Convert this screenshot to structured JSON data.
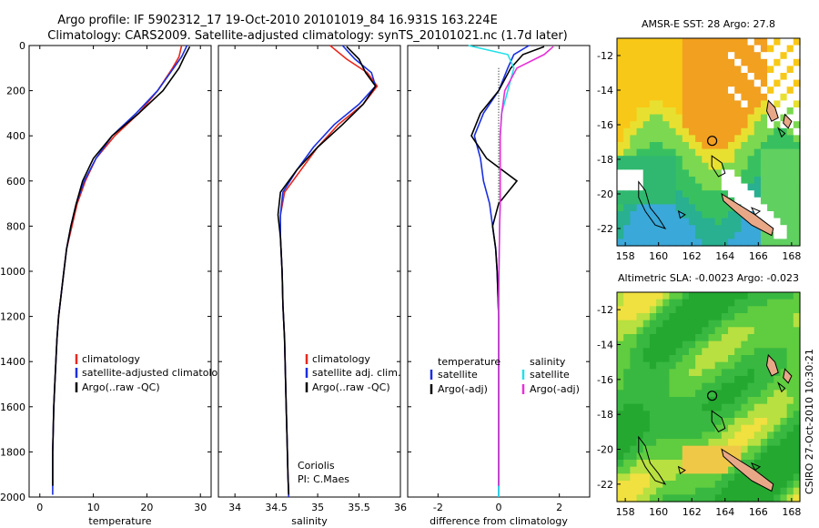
{
  "header": {
    "line1": "Argo profile: IF 5902312_17 19-Oct-2010 20101019_84 16.931S 163.224E",
    "line2": "Climatology: CARS2009. Satellite-adjusted climatology: synTS_20101021.nc (1.7d later)"
  },
  "side_label": "CSIRO 27-Oct-2010 10:30:21",
  "colors": {
    "climatology": "#e8281e",
    "satellite": "#1a2fe0",
    "argo": "#000000",
    "satellite_diff": "#22e0e8",
    "argo_diff": "#e830d8"
  },
  "chart_data": [
    {
      "type": "line",
      "id": "temperature",
      "xlabel": "temperature",
      "ylabel": "",
      "xlim": [
        -2,
        32
      ],
      "ylim": [
        2000,
        0
      ],
      "xticks": [
        "0",
        "10",
        "20",
        "30"
      ],
      "xtick_values": [
        0,
        10,
        20,
        30
      ],
      "yticks": [
        "0",
        "200",
        "400",
        "600",
        "800",
        "1000",
        "1200",
        "1400",
        "1600",
        "1800",
        "2000"
      ],
      "ytick_values": [
        0,
        200,
        400,
        600,
        800,
        1000,
        1200,
        1400,
        1600,
        1800,
        2000
      ],
      "series": [
        {
          "name": "climatology",
          "color": "#e8281e",
          "x": [
            26.5,
            26,
            24.8,
            22,
            18.5,
            14,
            10.5,
            8.5,
            7,
            6,
            5,
            4.5,
            4,
            3.5,
            3.2,
            3,
            2.8,
            2.6,
            2.5,
            2.4,
            2.4
          ],
          "y": [
            0,
            50,
            100,
            200,
            300,
            400,
            500,
            600,
            700,
            800,
            900,
            1000,
            1100,
            1200,
            1300,
            1400,
            1500,
            1600,
            1700,
            1800,
            1950
          ]
        },
        {
          "name": "satellite-adjusted climatology",
          "color": "#1a2fe0",
          "x": [
            27.5,
            26.5,
            25,
            22,
            18,
            13.5,
            10.5,
            8.3,
            6.8,
            5.8,
            5,
            4.5,
            4,
            3.5,
            3.2,
            3,
            2.8,
            2.6,
            2.5,
            2.4,
            2.4
          ],
          "y": [
            0,
            50,
            100,
            200,
            300,
            400,
            500,
            600,
            700,
            800,
            900,
            1000,
            1100,
            1200,
            1300,
            1400,
            1500,
            1600,
            1700,
            1800,
            1990
          ]
        },
        {
          "name": "Argo(..raw -QC)",
          "color": "#000000",
          "x": [
            28,
            27,
            26,
            23,
            18.5,
            13.5,
            10,
            8,
            6.8,
            5.8,
            5,
            4.5,
            4,
            3.5,
            3.2,
            3,
            2.8,
            2.6,
            2.5,
            2.4,
            2.4
          ],
          "y": [
            5,
            50,
            100,
            200,
            300,
            400,
            500,
            600,
            700,
            800,
            900,
            1000,
            1100,
            1200,
            1300,
            1400,
            1500,
            1600,
            1700,
            1800,
            1950
          ]
        }
      ],
      "legend": [
        "climatology",
        "satellite-adjusted climatology",
        "Argo(..raw -QC)"
      ]
    },
    {
      "type": "line",
      "id": "salinity",
      "xlabel": "salinity",
      "xlim": [
        33.8,
        36.0
      ],
      "ylim": [
        2000,
        0
      ],
      "xticks": [
        "34",
        "34.5",
        "35",
        "35.5",
        "36"
      ],
      "xtick_values": [
        34,
        34.5,
        35,
        35.5,
        36
      ],
      "series": [
        {
          "name": "climatology",
          "color": "#e8281e",
          "x": [
            35.15,
            35.35,
            35.6,
            35.72,
            35.55,
            35.25,
            35,
            34.8,
            34.6,
            34.55,
            34.55,
            34.57,
            34.58,
            34.6,
            34.61,
            34.62,
            34.63,
            34.64,
            34.65
          ],
          "y": [
            0,
            60,
            120,
            180,
            260,
            350,
            450,
            550,
            650,
            750,
            850,
            1000,
            1150,
            1300,
            1450,
            1600,
            1750,
            1900,
            2000
          ]
        },
        {
          "name": "satellite adj. clim.",
          "color": "#1a2fe0",
          "x": [
            35.3,
            35.45,
            35.65,
            35.7,
            35.5,
            35.2,
            34.95,
            34.75,
            34.58,
            34.55,
            34.55,
            34.57,
            34.58,
            34.6,
            34.61,
            34.62,
            34.63,
            34.64,
            34.65
          ],
          "y": [
            0,
            60,
            120,
            180,
            260,
            350,
            450,
            550,
            650,
            750,
            850,
            1000,
            1150,
            1300,
            1450,
            1600,
            1750,
            1900,
            2000
          ]
        },
        {
          "name": "Argo(..raw -QC)",
          "color": "#000000",
          "x": [
            35.35,
            35.5,
            35.58,
            35.7,
            35.55,
            35.3,
            35,
            34.75,
            34.55,
            34.52,
            34.55,
            34.57,
            34.58,
            34.6,
            34.61,
            34.62,
            34.63,
            34.64,
            34.65
          ],
          "y": [
            5,
            60,
            120,
            180,
            260,
            350,
            450,
            550,
            650,
            750,
            850,
            1000,
            1150,
            1300,
            1450,
            1600,
            1750,
            1900,
            1990
          ]
        }
      ],
      "legend": [
        "climatology",
        "satellite adj. clim.",
        "Argo(..raw -QC)"
      ],
      "annotation": [
        "Coriolis",
        "PI: C.Maes"
      ]
    },
    {
      "type": "line",
      "id": "difference",
      "xlabel": "difference from climatology",
      "xlim": [
        -3,
        3
      ],
      "ylim": [
        2000,
        0
      ],
      "xticks": [
        "-2",
        "0",
        "2"
      ],
      "xtick_values": [
        -2,
        0,
        2
      ],
      "series": [
        {
          "name": "temperature satellite",
          "color": "#1a2fe0",
          "x": [
            1,
            0.5,
            0.3,
            0,
            -0.5,
            -0.8,
            -0.6,
            -0.5,
            -0.3,
            -0.2,
            -0.1,
            -0.05,
            0,
            0,
            0,
            0,
            0
          ],
          "y": [
            0,
            40,
            100,
            200,
            300,
            400,
            500,
            600,
            700,
            800,
            900,
            1000,
            1200,
            1400,
            1600,
            1800,
            2000
          ]
        },
        {
          "name": "temperature Argo(-adj)",
          "color": "#000000",
          "x": [
            1.5,
            0.8,
            0.4,
            0,
            -0.6,
            -0.9,
            -0.4,
            0.6,
            0,
            -0.2,
            -0.1,
            -0.05,
            0,
            0,
            0,
            0,
            0
          ],
          "y": [
            5,
            40,
            100,
            200,
            300,
            400,
            500,
            600,
            700,
            800,
            900,
            1000,
            1200,
            1400,
            1600,
            1800,
            1950
          ]
        },
        {
          "name": "salinity satellite",
          "color": "#22e0e8",
          "x": [
            -1,
            0.3,
            0.5,
            0.3,
            0.1,
            0.05,
            0.05,
            0.05,
            0.05,
            0.03,
            0.02,
            0.01,
            0,
            0,
            0,
            0,
            0
          ],
          "y": [
            0,
            40,
            100,
            200,
            300,
            400,
            500,
            600,
            700,
            800,
            900,
            1000,
            1200,
            1400,
            1600,
            1800,
            2000
          ]
        },
        {
          "name": "salinity Argo(-adj)",
          "color": "#e830d8",
          "x": [
            1.8,
            1.5,
            0.6,
            0.2,
            0.1,
            0.05,
            0.05,
            0.05,
            0.05,
            0.03,
            0.02,
            0.01,
            0,
            0,
            0,
            0,
            0
          ],
          "y": [
            5,
            40,
            100,
            200,
            300,
            400,
            500,
            600,
            700,
            800,
            900,
            1000,
            1200,
            1400,
            1600,
            1800,
            1950
          ]
        }
      ],
      "legend_left": {
        "title": "temperature",
        "items": [
          "satellite",
          "Argo(-adj)"
        ]
      },
      "legend_right": {
        "title": "salinity",
        "items": [
          "satellite",
          "Argo(-adj)"
        ]
      }
    },
    {
      "type": "heatmap",
      "id": "sst_map",
      "title": "AMSR-E SST: 28 Argo: 27.8",
      "xlim": [
        157.5,
        168.5
      ],
      "ylim": [
        -23,
        -11
      ],
      "xticks": [
        "158",
        "160",
        "162",
        "164",
        "166",
        "168"
      ],
      "xtick_values": [
        158,
        160,
        162,
        164,
        166,
        168
      ],
      "yticks": [
        "-12",
        "-14",
        "-16",
        "-18",
        "-20",
        "-22"
      ],
      "ytick_values": [
        -12,
        -14,
        -16,
        -18,
        -20,
        -22
      ],
      "marker": {
        "lon": 163.224,
        "lat": -16.931
      }
    },
    {
      "type": "heatmap",
      "id": "sla_map",
      "title": "Altimetric SLA: -0.0023 Argo: -0.023",
      "xlim": [
        157.5,
        168.5
      ],
      "ylim": [
        -23,
        -11
      ],
      "xticks": [
        "158",
        "160",
        "162",
        "164",
        "166",
        "168"
      ],
      "xtick_values": [
        158,
        160,
        162,
        164,
        166,
        168
      ],
      "yticks": [
        "-12",
        "-14",
        "-16",
        "-18",
        "-20",
        "-22"
      ],
      "ytick_values": [
        -12,
        -14,
        -16,
        -18,
        -20,
        -22
      ],
      "marker": {
        "lon": 163.224,
        "lat": -16.931
      }
    }
  ]
}
